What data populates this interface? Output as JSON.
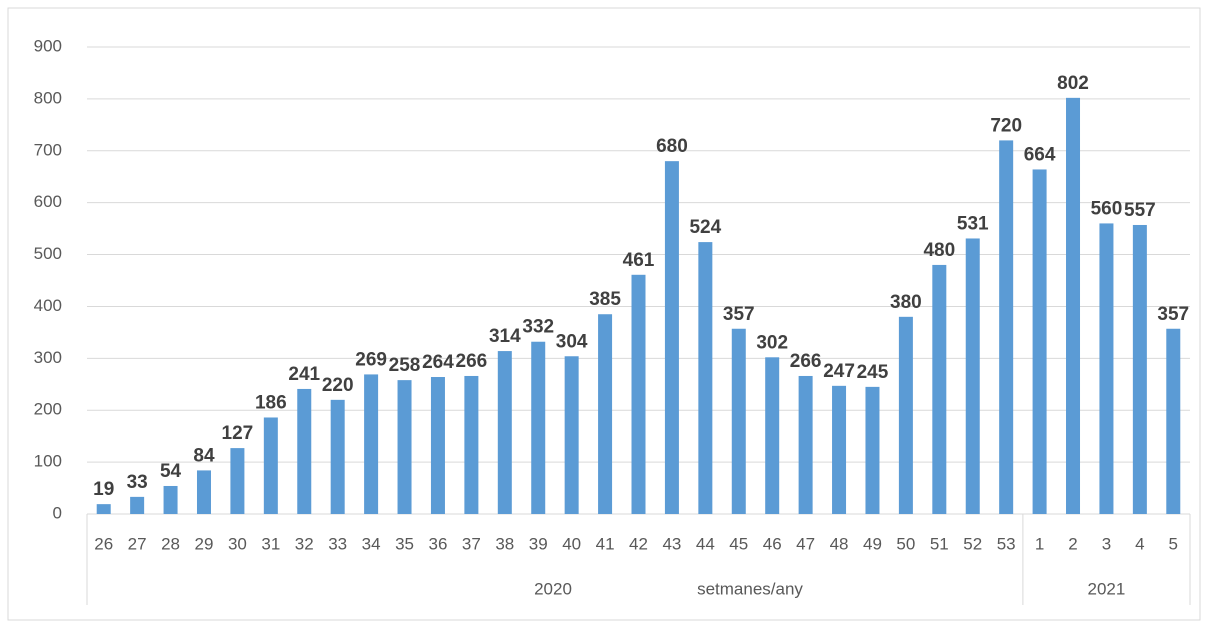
{
  "chart_data": {
    "type": "bar",
    "x_label": "setmanes/any",
    "groups": [
      {
        "label": "2020",
        "categories": [
          "26",
          "27",
          "28",
          "29",
          "30",
          "31",
          "32",
          "33",
          "34",
          "35",
          "36",
          "37",
          "38",
          "39",
          "40",
          "41",
          "42",
          "43",
          "44",
          "45",
          "46",
          "47",
          "48",
          "49",
          "50",
          "51",
          "52",
          "53"
        ]
      },
      {
        "label": "2021",
        "categories": [
          "1",
          "2",
          "3",
          "4",
          "5"
        ]
      }
    ],
    "values": [
      19,
      33,
      54,
      84,
      127,
      186,
      241,
      220,
      269,
      258,
      264,
      266,
      314,
      332,
      304,
      385,
      461,
      680,
      524,
      357,
      302,
      266,
      247,
      245,
      380,
      480,
      531,
      720,
      664,
      802,
      560,
      557,
      357
    ],
    "color": "#5b9bd5",
    "ylim": [
      0,
      900
    ],
    "yticks": [
      0,
      100,
      200,
      300,
      400,
      500,
      600,
      700,
      800,
      900
    ],
    "grid": true
  }
}
